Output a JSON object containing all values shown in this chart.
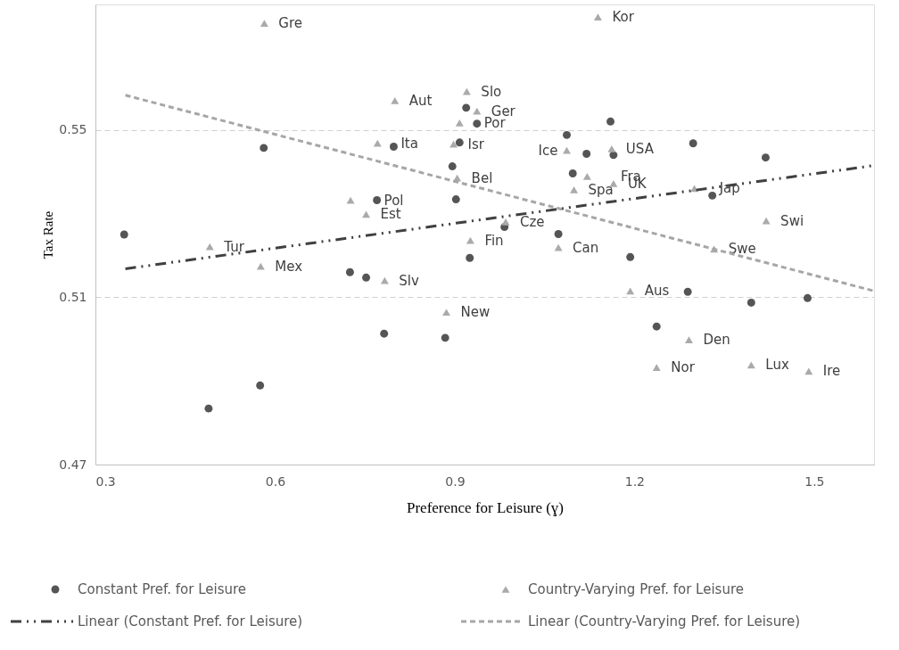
{
  "chart_data": {
    "type": "scatter",
    "xlabel": "Preference for Leisure (ɣ)",
    "ylabel": "Tax Rate",
    "xlim": [
      0.3,
      1.6
    ],
    "ylim": [
      0.47,
      0.58
    ],
    "xticks": [
      0.3,
      0.6,
      0.9,
      1.2,
      1.5
    ],
    "yticks": [
      0.47,
      0.51,
      0.55
    ],
    "grid": "y",
    "legend": "bottom",
    "series": [
      {
        "name": "Constant Pref. for Leisure",
        "marker": "circle",
        "color": "#555555",
        "x": [
          0.348,
          0.581,
          0.798,
          0.919,
          0.937,
          0.908,
          0.896,
          0.902,
          0.77,
          0.925,
          0.725,
          0.752,
          0.782,
          0.884,
          0.575,
          0.489,
          1.16,
          1.087,
          1.12,
          1.165,
          1.097,
          1.298,
          1.419,
          1.33,
          0.983,
          1.073,
          1.193,
          1.289,
          1.395,
          1.489,
          1.237
        ],
        "values": [
          0.525,
          0.5457,
          0.546,
          0.5553,
          0.5515,
          0.547,
          0.5413,
          0.5334,
          0.5332,
          0.5194,
          0.516,
          0.5147,
          0.5013,
          0.5003,
          0.4889,
          0.4834,
          0.552,
          0.5488,
          0.5443,
          0.544,
          0.5396,
          0.5468,
          0.5434,
          0.5343,
          0.5268,
          0.5251,
          0.5196,
          0.5113,
          0.5087,
          0.5098,
          0.503
        ]
      },
      {
        "name": "Country-Varying Pref. for Leisure",
        "marker": "triangle",
        "color": "#aaaaaa",
        "x": [
          0.582,
          0.8,
          0.92,
          0.937,
          0.908,
          0.771,
          0.898,
          0.904,
          0.726,
          0.752,
          0.491,
          0.576,
          0.783,
          0.886,
          0.926,
          1.139,
          0.985,
          1.073,
          1.087,
          1.162,
          1.121,
          1.165,
          1.099,
          1.3,
          1.42,
          1.333,
          1.193,
          1.291,
          1.237,
          1.395,
          1.491
        ],
        "values": [
          0.5755,
          0.557,
          0.5592,
          0.5545,
          0.5517,
          0.5468,
          0.5466,
          0.5385,
          0.5332,
          0.5298,
          0.5221,
          0.5174,
          0.514,
          0.5064,
          0.5236,
          0.577,
          0.528,
          0.5219,
          0.5451,
          0.5455,
          0.5389,
          0.5372,
          0.5357,
          0.536,
          0.5283,
          0.5215,
          0.5115,
          0.4998,
          0.4932,
          0.4938,
          0.4923
        ]
      },
      {
        "name": "Linear  (Constant Pref. for Leisure)",
        "type": "line",
        "line_style": "dashdot",
        "color": "#404040",
        "x": [
          0.35,
          1.6
        ],
        "values": [
          0.5168,
          0.5415
        ]
      },
      {
        "name": "Linear  (Country-Varying Pref. for Leisure)",
        "type": "line",
        "line_style": "dashed",
        "color": "#a6a6a6",
        "x": [
          0.35,
          1.6
        ],
        "values": [
          0.5583,
          0.5115
        ]
      }
    ],
    "annotations": [
      {
        "text": "Gre",
        "x": 0.582,
        "y": 0.5755
      },
      {
        "text": "Aut",
        "x": 0.8,
        "y": 0.557
      },
      {
        "text": "Slo",
        "x": 0.92,
        "y": 0.5592
      },
      {
        "text": "Ger",
        "x": 0.937,
        "y": 0.5545
      },
      {
        "text": "Por",
        "x": 0.908,
        "y": 0.5517
      },
      {
        "text": "Ita",
        "x": 0.771,
        "y": 0.5468
      },
      {
        "text": "Isr",
        "x": 0.898,
        "y": 0.5466
      },
      {
        "text": "Bel",
        "x": 0.904,
        "y": 0.5385
      },
      {
        "text": "Pol",
        "x": 0.726,
        "y": 0.5332
      },
      {
        "text": "Est",
        "x": 0.752,
        "y": 0.5298
      },
      {
        "text": "Tur",
        "x": 0.491,
        "y": 0.5221
      },
      {
        "text": "Mex",
        "x": 0.576,
        "y": 0.5174
      },
      {
        "text": "Slv",
        "x": 0.783,
        "y": 0.514
      },
      {
        "text": "New",
        "x": 0.886,
        "y": 0.5064
      },
      {
        "text": "Fin",
        "x": 0.926,
        "y": 0.5236
      },
      {
        "text": "Kor",
        "x": 1.139,
        "y": 0.577
      },
      {
        "text": "Cze",
        "x": 0.985,
        "y": 0.528
      },
      {
        "text": "Can",
        "x": 1.073,
        "y": 0.5219
      },
      {
        "text": "Ice",
        "x": 1.087,
        "y": 0.5451
      },
      {
        "text": "USA",
        "x": 1.162,
        "y": 0.5455
      },
      {
        "text": "Fra",
        "x": 1.121,
        "y": 0.5389
      },
      {
        "text": "UK",
        "x": 1.165,
        "y": 0.5372
      },
      {
        "text": "Spa",
        "x": 1.099,
        "y": 0.5357
      },
      {
        "text": "Jap",
        "x": 1.3,
        "y": 0.536
      },
      {
        "text": "Swi",
        "x": 1.42,
        "y": 0.5283
      },
      {
        "text": "Swe",
        "x": 1.333,
        "y": 0.5215
      },
      {
        "text": "Aus",
        "x": 1.193,
        "y": 0.5115
      },
      {
        "text": "Den",
        "x": 1.291,
        "y": 0.4998
      },
      {
        "text": "Nor",
        "x": 1.237,
        "y": 0.4932
      },
      {
        "text": "Lux",
        "x": 1.395,
        "y": 0.4938
      },
      {
        "text": "Ire",
        "x": 1.491,
        "y": 0.4923
      }
    ]
  }
}
